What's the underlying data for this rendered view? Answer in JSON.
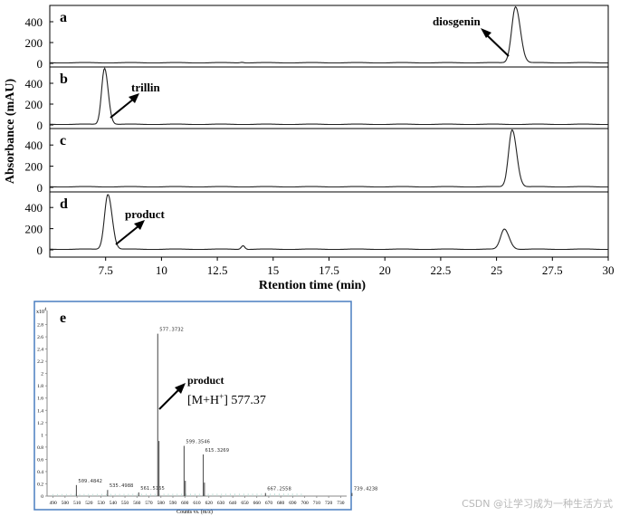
{
  "chart_data": [
    {
      "type": "line",
      "xlabel": "Rtention time (min)",
      "ylabel": "Absorbance (mAU)",
      "xlim": [
        5,
        30
      ],
      "x_ticks": [
        "7.5",
        "10",
        "12.5",
        "15",
        "17.5",
        "20",
        "22.5",
        "25",
        "27.5",
        "30"
      ],
      "y_ticks": [
        "0",
        "200",
        "400"
      ],
      "ylim": [
        0,
        560
      ],
      "panels": [
        {
          "label": "a",
          "annotation": "diosgenin",
          "peaks": [
            {
              "rt": 25.85,
              "height": 540,
              "width": 0.17
            }
          ],
          "small_peaks": [
            {
              "rt": 13.6,
              "height": 6
            }
          ]
        },
        {
          "label": "b",
          "annotation": "trillin",
          "peaks": [
            {
              "rt": 7.45,
              "height": 540,
              "width": 0.13
            }
          ],
          "small_peaks": []
        },
        {
          "label": "c",
          "annotation": "",
          "peaks": [
            {
              "rt": 25.7,
              "height": 540,
              "width": 0.16
            }
          ],
          "small_peaks": []
        },
        {
          "label": "d",
          "annotation": "product",
          "peaks": [
            {
              "rt": 7.6,
              "height": 520,
              "width": 0.15
            },
            {
              "rt": 25.35,
              "height": 190,
              "width": 0.17
            }
          ],
          "small_peaks": [
            {
              "rt": 13.65,
              "height": 35
            }
          ]
        }
      ]
    },
    {
      "type": "bar",
      "panel_label": "e",
      "xlabel": "Counts vs. (m/z)",
      "y_multiplier": "x10",
      "y_multiplier_exp": "4",
      "xlim": [
        485,
        735
      ],
      "ylim": [
        0,
        3.0
      ],
      "y_ticks": [
        "0",
        "0.2",
        "0.4",
        "0.6",
        "0.8",
        "1",
        "1.2",
        "1.4",
        "1.6",
        "1.8",
        "2",
        "2.2",
        "2.4",
        "2.6",
        "2.8"
      ],
      "x_ticks": [
        "490",
        "500",
        "510",
        "520",
        "530",
        "540",
        "550",
        "560",
        "570",
        "580",
        "590",
        "600",
        "610",
        "620",
        "630",
        "640",
        "650",
        "660",
        "670",
        "680",
        "690",
        "700",
        "710",
        "720",
        "730"
      ],
      "peaks": [
        {
          "mz": 509.4842,
          "intensity": 0.18,
          "label": "509.4842"
        },
        {
          "mz": 535.4988,
          "intensity": 0.1,
          "label": "535.4988"
        },
        {
          "mz": 561.5165,
          "intensity": 0.06,
          "label": "561.5165"
        },
        {
          "mz": 577.3732,
          "intensity": 2.65,
          "label": "577.3732"
        },
        {
          "mz": 578.37,
          "intensity": 0.9,
          "label": ""
        },
        {
          "mz": 599.3546,
          "intensity": 0.82,
          "label": "599.3546"
        },
        {
          "mz": 600.36,
          "intensity": 0.25,
          "label": ""
        },
        {
          "mz": 615.3269,
          "intensity": 0.68,
          "label": "615.3269"
        },
        {
          "mz": 616.33,
          "intensity": 0.22,
          "label": ""
        },
        {
          "mz": 667.2558,
          "intensity": 0.05,
          "label": "667.2558"
        },
        {
          "mz": 739.4238,
          "intensity": 0.05,
          "label": "739.4238"
        }
      ],
      "annotation": {
        "title": "product",
        "ion": "[M+H",
        "ion_sup": "+",
        "ion_tail": "] 577.37"
      }
    }
  ],
  "watermark": "CSDN @让学习成为一种生活方式"
}
